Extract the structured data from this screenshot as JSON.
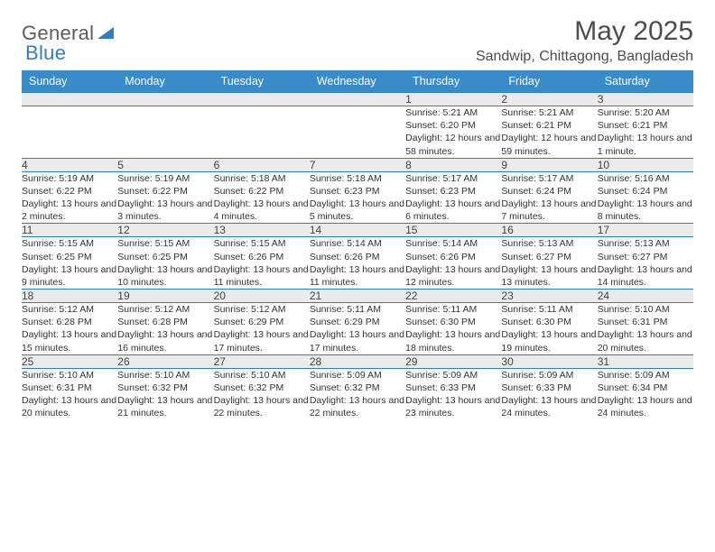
{
  "brand": {
    "left": "General",
    "right": "Blue"
  },
  "title": "May 2025",
  "location": "Sandwip, Chittagong, Bangladesh",
  "colors": {
    "header_bg": "#3a8bc9",
    "header_text": "#ffffff",
    "border": "#2d7fc1",
    "daynum_bg": "#ebebeb",
    "logo_gray": "#5c5c5c",
    "logo_blue": "#2d7fc1",
    "body_text": "#333333"
  },
  "weekdays": [
    "Sunday",
    "Monday",
    "Tuesday",
    "Wednesday",
    "Thursday",
    "Friday",
    "Saturday"
  ],
  "weeks": [
    [
      null,
      null,
      null,
      null,
      {
        "n": "1",
        "sr": "Sunrise: 5:21 AM",
        "ss": "Sunset: 6:20 PM",
        "dl": "Daylight: 12 hours and 58 minutes."
      },
      {
        "n": "2",
        "sr": "Sunrise: 5:21 AM",
        "ss": "Sunset: 6:21 PM",
        "dl": "Daylight: 12 hours and 59 minutes."
      },
      {
        "n": "3",
        "sr": "Sunrise: 5:20 AM",
        "ss": "Sunset: 6:21 PM",
        "dl": "Daylight: 13 hours and 1 minute."
      }
    ],
    [
      {
        "n": "4",
        "sr": "Sunrise: 5:19 AM",
        "ss": "Sunset: 6:22 PM",
        "dl": "Daylight: 13 hours and 2 minutes."
      },
      {
        "n": "5",
        "sr": "Sunrise: 5:19 AM",
        "ss": "Sunset: 6:22 PM",
        "dl": "Daylight: 13 hours and 3 minutes."
      },
      {
        "n": "6",
        "sr": "Sunrise: 5:18 AM",
        "ss": "Sunset: 6:22 PM",
        "dl": "Daylight: 13 hours and 4 minutes."
      },
      {
        "n": "7",
        "sr": "Sunrise: 5:18 AM",
        "ss": "Sunset: 6:23 PM",
        "dl": "Daylight: 13 hours and 5 minutes."
      },
      {
        "n": "8",
        "sr": "Sunrise: 5:17 AM",
        "ss": "Sunset: 6:23 PM",
        "dl": "Daylight: 13 hours and 6 minutes."
      },
      {
        "n": "9",
        "sr": "Sunrise: 5:17 AM",
        "ss": "Sunset: 6:24 PM",
        "dl": "Daylight: 13 hours and 7 minutes."
      },
      {
        "n": "10",
        "sr": "Sunrise: 5:16 AM",
        "ss": "Sunset: 6:24 PM",
        "dl": "Daylight: 13 hours and 8 minutes."
      }
    ],
    [
      {
        "n": "11",
        "sr": "Sunrise: 5:15 AM",
        "ss": "Sunset: 6:25 PM",
        "dl": "Daylight: 13 hours and 9 minutes."
      },
      {
        "n": "12",
        "sr": "Sunrise: 5:15 AM",
        "ss": "Sunset: 6:25 PM",
        "dl": "Daylight: 13 hours and 10 minutes."
      },
      {
        "n": "13",
        "sr": "Sunrise: 5:15 AM",
        "ss": "Sunset: 6:26 PM",
        "dl": "Daylight: 13 hours and 11 minutes."
      },
      {
        "n": "14",
        "sr": "Sunrise: 5:14 AM",
        "ss": "Sunset: 6:26 PM",
        "dl": "Daylight: 13 hours and 11 minutes."
      },
      {
        "n": "15",
        "sr": "Sunrise: 5:14 AM",
        "ss": "Sunset: 6:26 PM",
        "dl": "Daylight: 13 hours and 12 minutes."
      },
      {
        "n": "16",
        "sr": "Sunrise: 5:13 AM",
        "ss": "Sunset: 6:27 PM",
        "dl": "Daylight: 13 hours and 13 minutes."
      },
      {
        "n": "17",
        "sr": "Sunrise: 5:13 AM",
        "ss": "Sunset: 6:27 PM",
        "dl": "Daylight: 13 hours and 14 minutes."
      }
    ],
    [
      {
        "n": "18",
        "sr": "Sunrise: 5:12 AM",
        "ss": "Sunset: 6:28 PM",
        "dl": "Daylight: 13 hours and 15 minutes."
      },
      {
        "n": "19",
        "sr": "Sunrise: 5:12 AM",
        "ss": "Sunset: 6:28 PM",
        "dl": "Daylight: 13 hours and 16 minutes."
      },
      {
        "n": "20",
        "sr": "Sunrise: 5:12 AM",
        "ss": "Sunset: 6:29 PM",
        "dl": "Daylight: 13 hours and 17 minutes."
      },
      {
        "n": "21",
        "sr": "Sunrise: 5:11 AM",
        "ss": "Sunset: 6:29 PM",
        "dl": "Daylight: 13 hours and 17 minutes."
      },
      {
        "n": "22",
        "sr": "Sunrise: 5:11 AM",
        "ss": "Sunset: 6:30 PM",
        "dl": "Daylight: 13 hours and 18 minutes."
      },
      {
        "n": "23",
        "sr": "Sunrise: 5:11 AM",
        "ss": "Sunset: 6:30 PM",
        "dl": "Daylight: 13 hours and 19 minutes."
      },
      {
        "n": "24",
        "sr": "Sunrise: 5:10 AM",
        "ss": "Sunset: 6:31 PM",
        "dl": "Daylight: 13 hours and 20 minutes."
      }
    ],
    [
      {
        "n": "25",
        "sr": "Sunrise: 5:10 AM",
        "ss": "Sunset: 6:31 PM",
        "dl": "Daylight: 13 hours and 20 minutes."
      },
      {
        "n": "26",
        "sr": "Sunrise: 5:10 AM",
        "ss": "Sunset: 6:32 PM",
        "dl": "Daylight: 13 hours and 21 minutes."
      },
      {
        "n": "27",
        "sr": "Sunrise: 5:10 AM",
        "ss": "Sunset: 6:32 PM",
        "dl": "Daylight: 13 hours and 22 minutes."
      },
      {
        "n": "28",
        "sr": "Sunrise: 5:09 AM",
        "ss": "Sunset: 6:32 PM",
        "dl": "Daylight: 13 hours and 22 minutes."
      },
      {
        "n": "29",
        "sr": "Sunrise: 5:09 AM",
        "ss": "Sunset: 6:33 PM",
        "dl": "Daylight: 13 hours and 23 minutes."
      },
      {
        "n": "30",
        "sr": "Sunrise: 5:09 AM",
        "ss": "Sunset: 6:33 PM",
        "dl": "Daylight: 13 hours and 24 minutes."
      },
      {
        "n": "31",
        "sr": "Sunrise: 5:09 AM",
        "ss": "Sunset: 6:34 PM",
        "dl": "Daylight: 13 hours and 24 minutes."
      }
    ]
  ]
}
